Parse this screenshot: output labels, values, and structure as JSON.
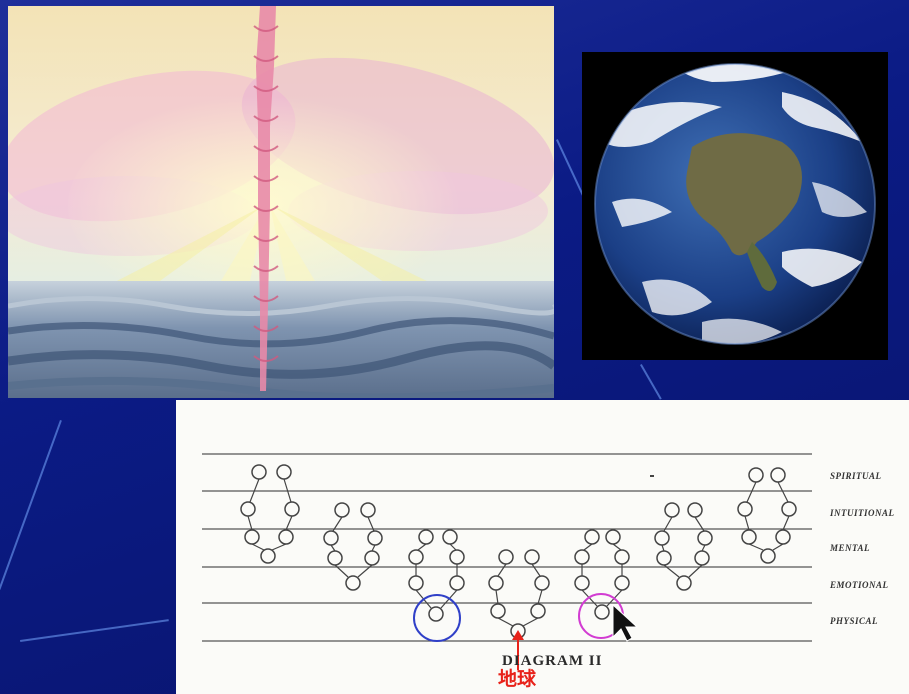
{
  "slide": {
    "background_color": "#0b1b85"
  },
  "painting": {
    "subject": "pink light column rising from the sea"
  },
  "photo": {
    "subject": "earth-globe"
  },
  "diagram": {
    "plane_labels": [
      "SPIRITUAL",
      "INTUITIONAL",
      "MENTAL",
      "EMOTIONAL",
      "PHYSICAL"
    ],
    "title": "DIAGRAM II",
    "earth_annotation": "地球",
    "highlight_colors": {
      "blue_circle": "#3040c8",
      "magenta_circle": "#d23cd2",
      "red_arrow": "#e8221a"
    }
  }
}
